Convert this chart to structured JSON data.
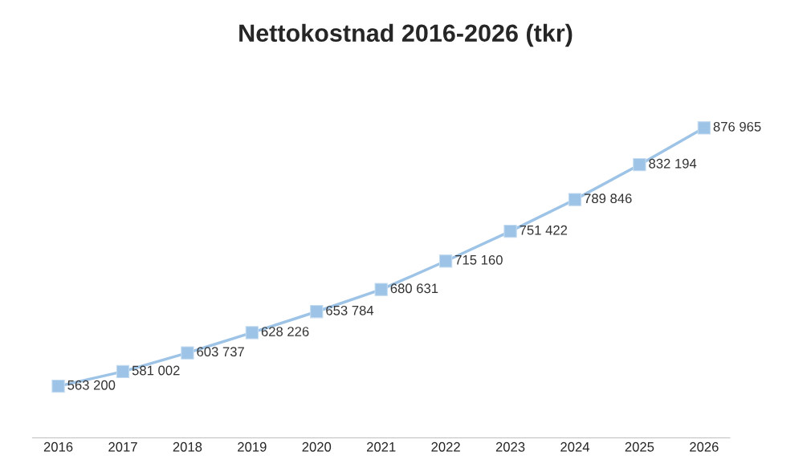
{
  "chart_data": {
    "type": "line",
    "title": "Nettokostnad 2016-2026 (tkr)",
    "categories": [
      "2016",
      "2017",
      "2018",
      "2019",
      "2020",
      "2021",
      "2022",
      "2023",
      "2024",
      "2025",
      "2026"
    ],
    "series": [
      {
        "color": "#9dc3e6",
        "values": [
          563200,
          581002,
          603737,
          628226,
          653784,
          680631,
          715160,
          751422,
          789846,
          832194,
          876965
        ],
        "value_labels": [
          "563 200",
          "581 002",
          "603 737",
          "628 226",
          "653 784",
          "680 631",
          "715 160",
          "751 422",
          "789 846",
          "832 194",
          "876 965"
        ]
      }
    ],
    "tick_labels": "x",
    "marker": "square",
    "line_style": "solid",
    "grid": false,
    "legend": false
  }
}
